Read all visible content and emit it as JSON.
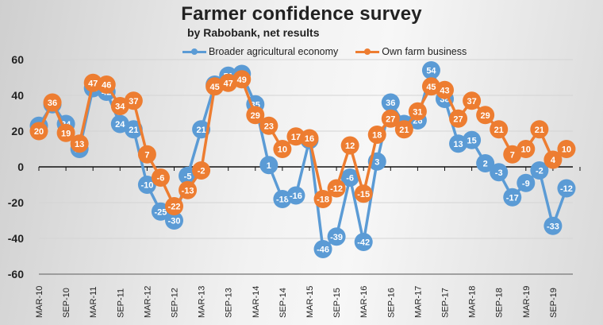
{
  "chart_data": {
    "type": "line",
    "title": "Farmer confidence survey",
    "subtitle": "by Rabobank, net results",
    "xlabel": "",
    "ylabel": "",
    "ylim": [
      -60,
      60
    ],
    "yticks": [
      60,
      40,
      20,
      0,
      -20,
      -40,
      -60
    ],
    "grid": true,
    "legend": "top-center",
    "xtick_labels": [
      "MAR-10",
      "SEP-10",
      "MAR-11",
      "SEP-11",
      "MAR-12",
      "SEP-12",
      "MAR-13",
      "SEP-13",
      "MAR-14",
      "SEP-14",
      "MAR-15",
      "SEP-15",
      "MAR-16",
      "SEP-16",
      "MAR-17",
      "SEP-17",
      "MAR-18",
      "SEP-18",
      "MAR-19",
      "SEP-19"
    ],
    "x_period": "quarterly",
    "series": [
      {
        "name": "Broader agricultural economy",
        "color": "#5b9bd5",
        "values": [
          23,
          35,
          24,
          10,
          44,
          42,
          24,
          21,
          -10,
          -25,
          -30,
          -5,
          21,
          46,
          51,
          52,
          35,
          1,
          -18,
          -16,
          15,
          -46,
          -39,
          -6,
          -42,
          3,
          36,
          24,
          26,
          54,
          38,
          13,
          15,
          2,
          -3,
          -17,
          -9,
          -2,
          -33,
          -12
        ]
      },
      {
        "name": "Own farm business",
        "color": "#ed7d31",
        "values": [
          20,
          36,
          19,
          13,
          47,
          46,
          34,
          37,
          7,
          -6,
          -22,
          -13,
          -2,
          45,
          47,
          49,
          29,
          23,
          10,
          17,
          16,
          -18,
          -12,
          12,
          -15,
          18,
          27,
          21,
          31,
          45,
          43,
          27,
          37,
          29,
          21,
          7,
          10,
          21,
          4,
          10
        ]
      }
    ]
  }
}
